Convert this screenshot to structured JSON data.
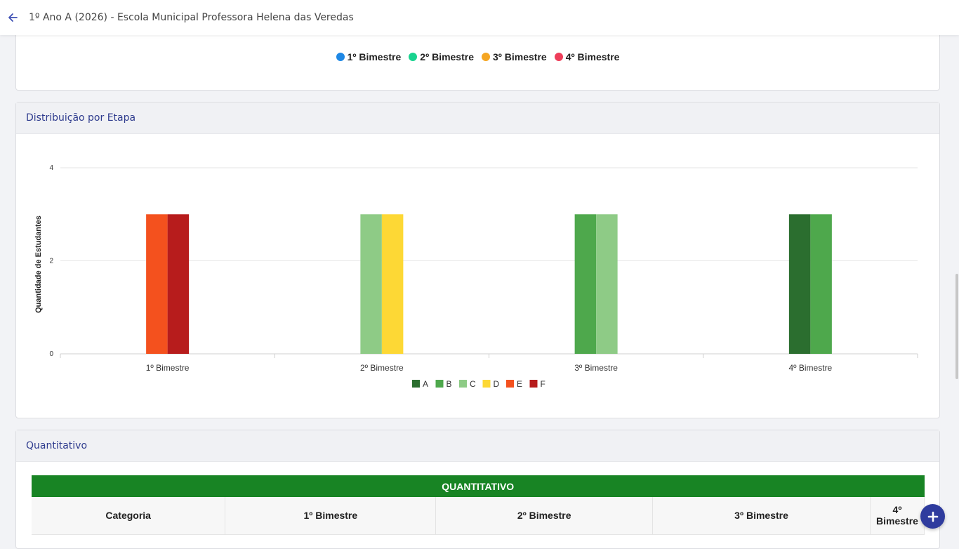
{
  "header": {
    "title": "1º Ano A (2026) - Escola Municipal Professora Helena das Veredas",
    "back_icon": "arrow-left-icon"
  },
  "period_legend": [
    {
      "label": "1º Bimestre",
      "color": "#1e88e5"
    },
    {
      "label": "2º Bimestre",
      "color": "#19d38f"
    },
    {
      "label": "3º Bimestre",
      "color": "#f5a623"
    },
    {
      "label": "4º Bimestre",
      "color": "#ee3e5a"
    }
  ],
  "distribution_card": {
    "title": "Distribuição por Etapa"
  },
  "chart_data": {
    "type": "bar",
    "categories": [
      "1º Bimestre",
      "2º Bimestre",
      "3º Bimestre",
      "4º Bimestre"
    ],
    "ylabel": "Quantidade de Estudantes",
    "xlabel": "",
    "ylim": [
      0,
      4
    ],
    "yticks": [
      0,
      2,
      4
    ],
    "grid": true,
    "legend_position": "bottom",
    "series": [
      {
        "name": "A",
        "color": "#2b6e2f",
        "values": [
          0,
          0,
          0,
          3
        ]
      },
      {
        "name": "B",
        "color": "#4ea84c",
        "values": [
          0,
          0,
          3,
          3
        ]
      },
      {
        "name": "C",
        "color": "#8ecb86",
        "values": [
          0,
          3,
          3,
          0
        ]
      },
      {
        "name": "D",
        "color": "#fdd835",
        "values": [
          0,
          3,
          0,
          0
        ]
      },
      {
        "name": "E",
        "color": "#f4511e",
        "values": [
          3,
          0,
          0,
          0
        ]
      },
      {
        "name": "F",
        "color": "#b71c1c",
        "values": [
          3,
          0,
          0,
          0
        ]
      }
    ]
  },
  "quant_card": {
    "title": "Quantitativo",
    "table_title": "QUANTITATIVO",
    "columns": [
      "Categoria",
      "1º Bimestre",
      "2º Bimestre",
      "3º Bimestre",
      "4º Bimestre"
    ]
  },
  "fab": {
    "icon": "plus-icon"
  }
}
